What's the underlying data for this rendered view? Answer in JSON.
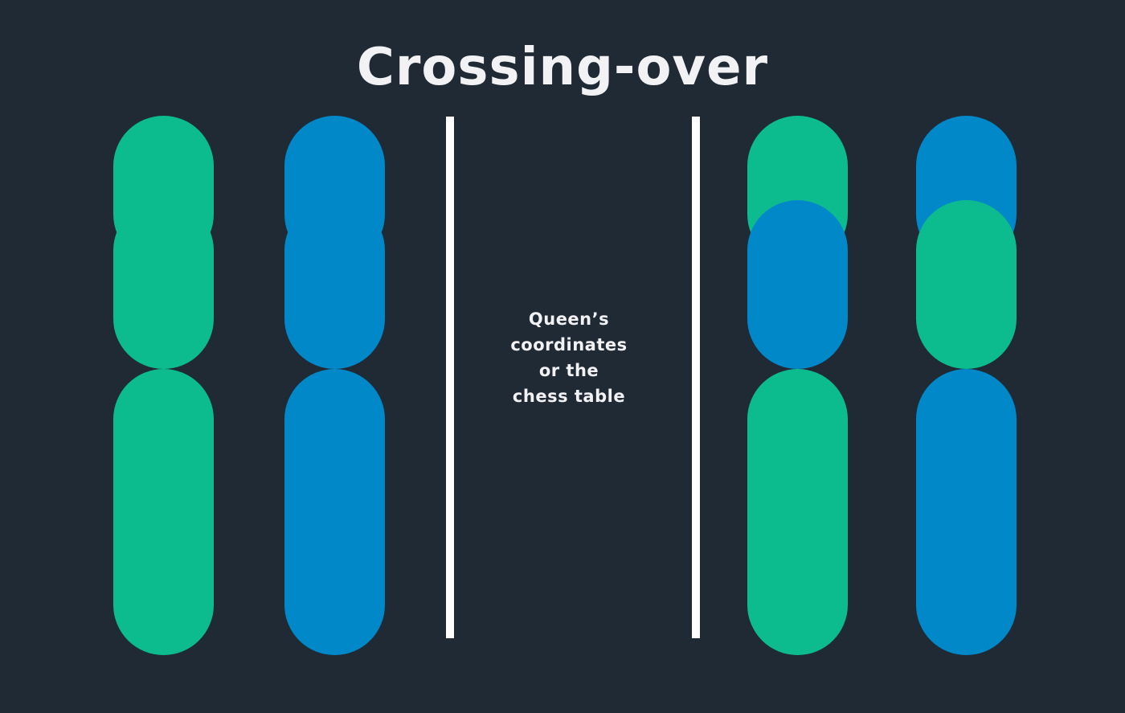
{
  "title": "Crossing-over",
  "caption": {
    "lines": [
      "Queen’s",
      "coordinates",
      "or the",
      "chess table"
    ]
  },
  "colors": {
    "background": "#202a35",
    "green": "#0dbc8e",
    "blue": "#0088c8",
    "divider": "#ffffff",
    "text": "#f2f2f4"
  },
  "chromosomes": [
    {
      "name": "chromosome-1-before",
      "top_arm": "green",
      "top_tip": "green",
      "bottom_arm": "green"
    },
    {
      "name": "chromosome-2-before",
      "top_arm": "blue",
      "top_tip": "blue",
      "bottom_arm": "blue"
    },
    {
      "name": "chromosome-1-after",
      "top_arm": "blue",
      "top_tip": "green",
      "bottom_arm": "green"
    },
    {
      "name": "chromosome-2-after",
      "top_arm": "green",
      "top_tip": "blue",
      "bottom_arm": "blue"
    }
  ]
}
